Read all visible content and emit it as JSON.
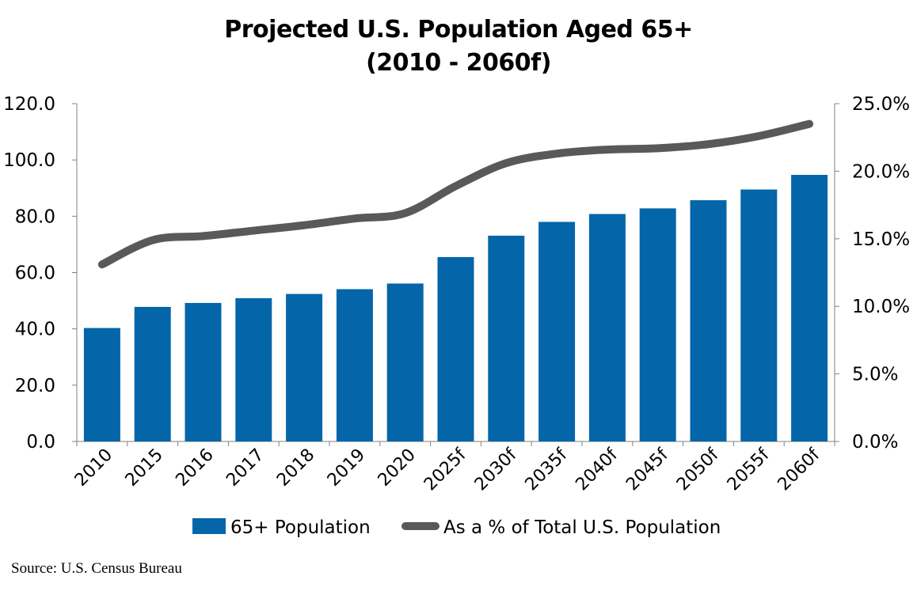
{
  "chart_data": {
    "type": "bar",
    "title": "Projected U.S. Population Aged 65+",
    "subtitle": "(2010 - 2060f)",
    "categories": [
      "2010",
      "2015",
      "2016",
      "2017",
      "2018",
      "2019",
      "2020",
      "2025f",
      "2030f",
      "2035f",
      "2040f",
      "2045f",
      "2050f",
      "2055f",
      "2060f"
    ],
    "series": [
      {
        "name": "65+ Population",
        "type": "bar",
        "axis": "left",
        "color": "#0465A9",
        "values": [
          40.3,
          47.8,
          49.2,
          50.9,
          52.4,
          54.1,
          56.1,
          65.5,
          73.1,
          78.0,
          80.8,
          82.8,
          85.7,
          89.5,
          94.7
        ]
      },
      {
        "name": "As a % of Total U.S. Population",
        "type": "line",
        "axis": "right",
        "color": "#595959",
        "values": [
          13.1,
          14.9,
          15.2,
          15.6,
          16.0,
          16.5,
          16.9,
          18.9,
          20.6,
          21.3,
          21.6,
          21.7,
          22.0,
          22.6,
          23.5
        ]
      }
    ],
    "y_left": {
      "min": 0,
      "max": 120,
      "step": 20,
      "ticks": [
        "0.0",
        "20.0",
        "40.0",
        "60.0",
        "80.0",
        "100.0",
        "120.0"
      ]
    },
    "y_right": {
      "min": 0,
      "max": 25,
      "step": 5,
      "ticks": [
        "0.0%",
        "5.0%",
        "10.0%",
        "15.0%",
        "20.0%",
        "25.0%"
      ]
    },
    "grid": false,
    "legend_position": "bottom"
  },
  "source": "Source: U.S. Census Bureau"
}
